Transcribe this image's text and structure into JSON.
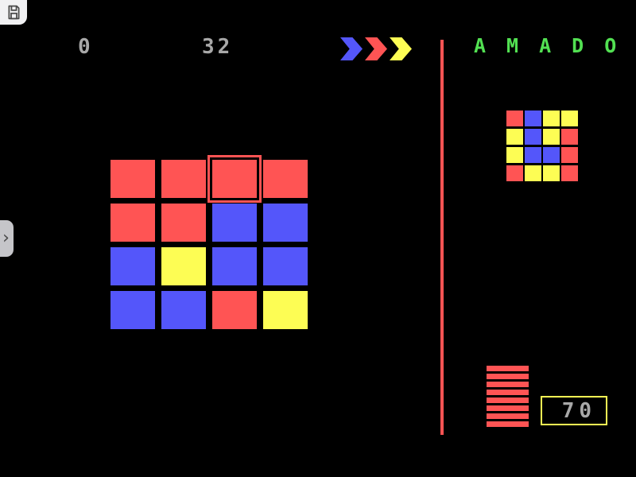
{
  "palette": {
    "red": "#ff5454",
    "blue": "#5456fa",
    "yellow": "#fdfd54",
    "green": "#52e052",
    "gray": "#a8a8a8"
  },
  "toolbar": {
    "save_icon": "floppy-disk-icon"
  },
  "hud": {
    "left_counter": "0",
    "right_counter": "32"
  },
  "title": {
    "text": "AMADO"
  },
  "move_indicators": [
    "blue",
    "red",
    "yellow"
  ],
  "board": {
    "rows": [
      [
        "red",
        "red",
        "red",
        "red"
      ],
      [
        "red",
        "red",
        "blue",
        "blue"
      ],
      [
        "blue",
        "yellow",
        "blue",
        "blue"
      ],
      [
        "blue",
        "blue",
        "red",
        "yellow"
      ]
    ],
    "cursor": {
      "row": 0,
      "col": 2
    }
  },
  "goal": {
    "rows": [
      [
        "red",
        "blue",
        "yellow",
        "yellow"
      ],
      [
        "yellow",
        "blue",
        "yellow",
        "red"
      ],
      [
        "yellow",
        "blue",
        "blue",
        "red"
      ],
      [
        "red",
        "yellow",
        "yellow",
        "red"
      ]
    ]
  },
  "progress": {
    "stripe_count": 8,
    "color": "red"
  },
  "score": {
    "value": "70"
  },
  "handle": {
    "glyph": "›"
  }
}
